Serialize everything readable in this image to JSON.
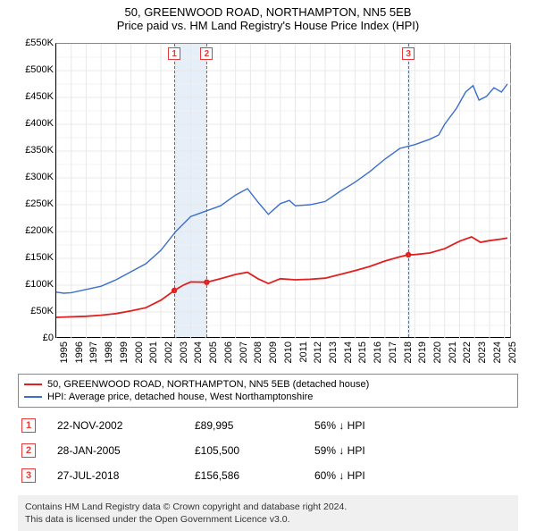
{
  "title_line1": "50, GREENWOOD ROAD, NORTHAMPTON, NN5 5EB",
  "title_line2": "Price paid vs. HM Land Registry's House Price Index (HPI)",
  "chart": {
    "type": "line",
    "background_color": "#ffffff",
    "grid_color": "#e8e8e8",
    "grid_minor_color": "#f3f3f3",
    "axis_label_fontsize": 11,
    "xlim": [
      1995,
      2025.5
    ],
    "ylim": [
      0,
      550000
    ],
    "ytick_step": 50000,
    "ytick_labels": [
      "£0",
      "£50K",
      "£100K",
      "£150K",
      "£200K",
      "£250K",
      "£300K",
      "£350K",
      "£400K",
      "£450K",
      "£500K",
      "£550K"
    ],
    "xticks": [
      1995,
      1996,
      1997,
      1998,
      1999,
      2000,
      2001,
      2002,
      2003,
      2004,
      2005,
      2006,
      2007,
      2008,
      2009,
      2010,
      2011,
      2012,
      2013,
      2014,
      2015,
      2016,
      2017,
      2018,
      2019,
      2020,
      2021,
      2022,
      2023,
      2024,
      2025
    ],
    "highlight_band_color": "#e6eef7",
    "highlight_bands": [
      [
        2002.9,
        2005.1
      ],
      [
        2018.5,
        2018.7
      ]
    ],
    "event_line_color": "#e63939",
    "event_line_dash": "4,3",
    "events_x": [
      2002.9,
      2005.07,
      2018.57
    ],
    "series": [
      {
        "name": "property",
        "color": "#e02020",
        "line_width": 1.8,
        "points": [
          [
            1995.0,
            40000
          ],
          [
            1996.0,
            41000
          ],
          [
            1997.0,
            42000
          ],
          [
            1998.0,
            44000
          ],
          [
            1999.0,
            47000
          ],
          [
            2000.0,
            52000
          ],
          [
            2001.0,
            58000
          ],
          [
            2002.0,
            72000
          ],
          [
            2002.9,
            89995
          ],
          [
            2003.5,
            100000
          ],
          [
            2004.0,
            106000
          ],
          [
            2005.07,
            105500
          ],
          [
            2006.0,
            112000
          ],
          [
            2007.0,
            120000
          ],
          [
            2007.8,
            124000
          ],
          [
            2008.5,
            112000
          ],
          [
            2009.2,
            103000
          ],
          [
            2010.0,
            112000
          ],
          [
            2011.0,
            110000
          ],
          [
            2012.0,
            111000
          ],
          [
            2013.0,
            113000
          ],
          [
            2014.0,
            120000
          ],
          [
            2015.0,
            127000
          ],
          [
            2016.0,
            135000
          ],
          [
            2017.0,
            145000
          ],
          [
            2018.0,
            153000
          ],
          [
            2018.57,
            156586
          ],
          [
            2019.0,
            157000
          ],
          [
            2020.0,
            160000
          ],
          [
            2021.0,
            168000
          ],
          [
            2022.0,
            182000
          ],
          [
            2022.8,
            190000
          ],
          [
            2023.4,
            180000
          ],
          [
            2024.0,
            183000
          ],
          [
            2024.8,
            186000
          ],
          [
            2025.2,
            188000
          ]
        ],
        "markers": [
          [
            2002.9,
            89995
          ],
          [
            2005.07,
            105500
          ],
          [
            2018.57,
            156586
          ]
        ],
        "marker_radius": 3.2
      },
      {
        "name": "hpi",
        "color": "#3b6fc9",
        "line_width": 1.4,
        "points": [
          [
            1995.0,
            87000
          ],
          [
            1995.5,
            85000
          ],
          [
            1996.0,
            86000
          ],
          [
            1997.0,
            92000
          ],
          [
            1998.0,
            98000
          ],
          [
            1999.0,
            110000
          ],
          [
            2000.0,
            125000
          ],
          [
            2001.0,
            140000
          ],
          [
            2002.0,
            165000
          ],
          [
            2003.0,
            200000
          ],
          [
            2004.0,
            228000
          ],
          [
            2005.0,
            238000
          ],
          [
            2006.0,
            248000
          ],
          [
            2007.0,
            268000
          ],
          [
            2007.8,
            280000
          ],
          [
            2008.5,
            255000
          ],
          [
            2009.2,
            232000
          ],
          [
            2010.0,
            252000
          ],
          [
            2010.6,
            258000
          ],
          [
            2011.0,
            248000
          ],
          [
            2012.0,
            250000
          ],
          [
            2013.0,
            256000
          ],
          [
            2014.0,
            275000
          ],
          [
            2015.0,
            292000
          ],
          [
            2016.0,
            312000
          ],
          [
            2017.0,
            335000
          ],
          [
            2018.0,
            355000
          ],
          [
            2019.0,
            362000
          ],
          [
            2020.0,
            372000
          ],
          [
            2020.6,
            380000
          ],
          [
            2021.0,
            400000
          ],
          [
            2021.8,
            430000
          ],
          [
            2022.4,
            460000
          ],
          [
            2022.9,
            472000
          ],
          [
            2023.3,
            445000
          ],
          [
            2023.8,
            452000
          ],
          [
            2024.3,
            468000
          ],
          [
            2024.8,
            460000
          ],
          [
            2025.2,
            475000
          ]
        ]
      }
    ]
  },
  "legend": {
    "items": [
      {
        "color": "#e02020",
        "label": "50, GREENWOOD ROAD, NORTHAMPTON, NN5 5EB (detached house)"
      },
      {
        "color": "#3b6fc9",
        "label": "HPI: Average price, detached house, West Northamptonshire"
      }
    ]
  },
  "events_table": [
    {
      "n": "1",
      "date": "22-NOV-2002",
      "price": "£89,995",
      "diff": "56% ↓ HPI"
    },
    {
      "n": "2",
      "date": "28-JAN-2005",
      "price": "£105,500",
      "diff": "59% ↓ HPI"
    },
    {
      "n": "3",
      "date": "27-JUL-2018",
      "price": "£156,586",
      "diff": "60% ↓ HPI"
    }
  ],
  "footer_line1": "Contains HM Land Registry data © Crown copyright and database right 2024.",
  "footer_line2": "This data is licensed under the Open Government Licence v3.0."
}
